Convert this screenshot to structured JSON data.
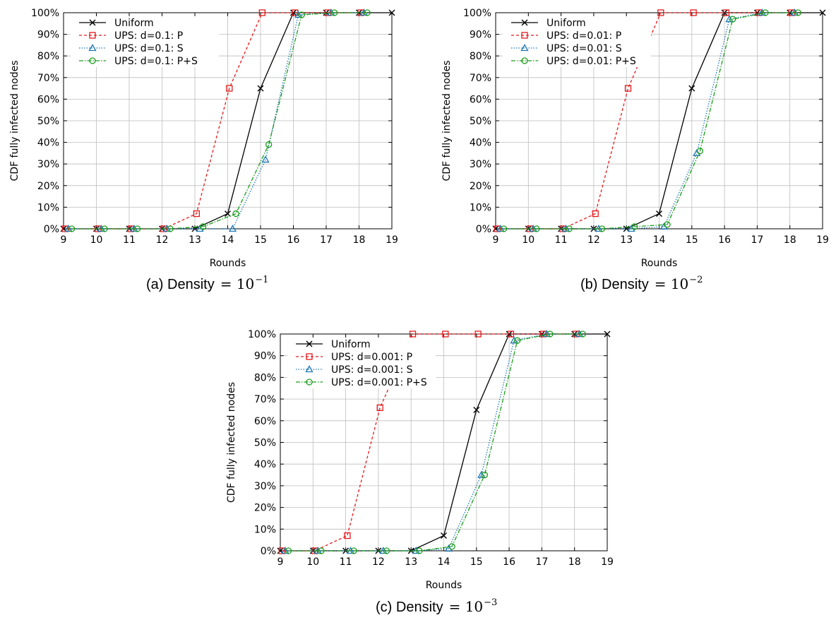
{
  "colors": {
    "uniform": "#000000",
    "ups_p": "#e41a1c",
    "ups_s": "#1f78b4",
    "ups_ps": "#1a9e1a",
    "grid": "#bdbdbd"
  },
  "chart_data": [
    {
      "type": "line",
      "caption": "(a) Density",
      "caption_math": "= 10",
      "caption_exp": "−1",
      "xlabel": "Rounds",
      "ylabel": "CDF fully infected nodes",
      "xlim": [
        9,
        19
      ],
      "ylim": [
        0,
        100
      ],
      "xticks": [
        "9",
        "10",
        "11",
        "12",
        "13",
        "14",
        "15",
        "16",
        "17",
        "18",
        "19"
      ],
      "yticks": [
        "0%",
        "10%",
        "20%",
        "30%",
        "40%",
        "50%",
        "60%",
        "70%",
        "80%",
        "90%",
        "100%"
      ],
      "grid": true,
      "legend_position": "top-left",
      "series": [
        {
          "name": "Uniform",
          "style": "uniform",
          "x": [
            9,
            10,
            11,
            12,
            13,
            14,
            15,
            16,
            17,
            18,
            19
          ],
          "y": [
            0,
            0,
            0,
            0,
            0,
            7,
            65,
            100,
            100,
            100,
            100
          ]
        },
        {
          "name": "UPS: d=0.1: P",
          "style": "ups_p",
          "x": [
            9.05,
            10.05,
            11.05,
            12.05,
            13.05,
            14.05,
            15.05,
            16.05,
            17.05,
            18.05
          ],
          "y": [
            0,
            0,
            0,
            0,
            7,
            65,
            100,
            100,
            100,
            100
          ]
        },
        {
          "name": "UPS: d=0.1: S",
          "style": "ups_s",
          "x": [
            9.15,
            10.15,
            11.15,
            12.15,
            13.15,
            14.15,
            15.15,
            16.15,
            17.15,
            18.15
          ],
          "y": [
            0,
            0,
            0,
            0,
            0,
            0,
            32,
            99,
            100,
            100
          ]
        },
        {
          "name": "UPS: d=0.1: P+S",
          "style": "ups_ps",
          "x": [
            9.25,
            10.25,
            11.25,
            12.25,
            13.25,
            14.25,
            15.25,
            16.25,
            17.25,
            18.25
          ],
          "y": [
            0,
            0,
            0,
            0,
            1,
            7,
            39,
            99,
            100,
            100
          ]
        }
      ]
    },
    {
      "type": "line",
      "caption": "(b) Density",
      "caption_math": "= 10",
      "caption_exp": "−2",
      "xlabel": "Rounds",
      "ylabel": "CDF fully infected nodes",
      "xlim": [
        9,
        19
      ],
      "ylim": [
        0,
        100
      ],
      "xticks": [
        "9",
        "10",
        "11",
        "12",
        "13",
        "14",
        "15",
        "16",
        "17",
        "18",
        "19"
      ],
      "yticks": [
        "0%",
        "10%",
        "20%",
        "30%",
        "40%",
        "50%",
        "60%",
        "70%",
        "80%",
        "90%",
        "100%"
      ],
      "grid": true,
      "legend_position": "top-left",
      "series": [
        {
          "name": "Uniform",
          "style": "uniform",
          "x": [
            9,
            10,
            11,
            12,
            13,
            14,
            15,
            16,
            17,
            18,
            19
          ],
          "y": [
            0,
            0,
            0,
            0,
            0,
            7,
            65,
            100,
            100,
            100,
            100
          ]
        },
        {
          "name": "UPS: d=0.01: P",
          "style": "ups_p",
          "x": [
            9.05,
            10.05,
            11.05,
            12.05,
            13.05,
            14.05,
            15.05,
            16.05,
            17.05,
            18.05
          ],
          "y": [
            0,
            0,
            0,
            7,
            65,
            100,
            100,
            100,
            100,
            100
          ]
        },
        {
          "name": "UPS: d=0.01: S",
          "style": "ups_s",
          "x": [
            9.15,
            10.15,
            11.15,
            12.15,
            13.15,
            14.15,
            15.15,
            16.15,
            17.15,
            18.15
          ],
          "y": [
            0,
            0,
            0,
            0,
            0,
            1,
            35,
            97,
            100,
            100
          ]
        },
        {
          "name": "UPS: d=0.01: P+S",
          "style": "ups_ps",
          "x": [
            9.25,
            10.25,
            11.25,
            12.25,
            13.25,
            14.25,
            15.25,
            16.25,
            17.25,
            18.25
          ],
          "y": [
            0,
            0,
            0,
            0,
            1,
            2,
            36,
            97,
            100,
            100
          ]
        }
      ]
    },
    {
      "type": "line",
      "caption": "(c) Density",
      "caption_math": "= 10",
      "caption_exp": "−3",
      "xlabel": "Rounds",
      "ylabel": "CDF fully infected nodes",
      "xlim": [
        9,
        19
      ],
      "ylim": [
        0,
        100
      ],
      "xticks": [
        "9",
        "10",
        "11",
        "12",
        "13",
        "14",
        "15",
        "16",
        "17",
        "18",
        "19"
      ],
      "yticks": [
        "0%",
        "10%",
        "20%",
        "30%",
        "40%",
        "50%",
        "60%",
        "70%",
        "80%",
        "90%",
        "100%"
      ],
      "grid": true,
      "legend_position": "top-left",
      "series": [
        {
          "name": "Uniform",
          "style": "uniform",
          "x": [
            9,
            10,
            11,
            12,
            13,
            14,
            15,
            16,
            17,
            18,
            19
          ],
          "y": [
            0,
            0,
            0,
            0,
            0,
            7,
            65,
            100,
            100,
            100,
            100
          ]
        },
        {
          "name": "UPS: d=0.001: P",
          "style": "ups_p",
          "x": [
            9.05,
            10.05,
            11.05,
            12.05,
            13.05,
            14.05,
            15.05,
            16.05,
            17.05,
            18.05
          ],
          "y": [
            0,
            0,
            7,
            66,
            100,
            100,
            100,
            100,
            100,
            100
          ]
        },
        {
          "name": "UPS: d=0.001: S",
          "style": "ups_s",
          "x": [
            9.15,
            10.15,
            11.15,
            12.15,
            13.15,
            14.15,
            15.15,
            16.15,
            17.15,
            18.15
          ],
          "y": [
            0,
            0,
            0,
            0,
            0,
            1,
            35,
            97,
            100,
            100
          ]
        },
        {
          "name": "UPS: d=0.001: P+S",
          "style": "ups_ps",
          "x": [
            9.25,
            10.25,
            11.25,
            12.25,
            13.25,
            14.25,
            15.25,
            16.25,
            17.25,
            18.25
          ],
          "y": [
            0,
            0,
            0,
            0,
            0,
            2,
            35,
            97,
            100,
            100
          ]
        }
      ]
    }
  ]
}
